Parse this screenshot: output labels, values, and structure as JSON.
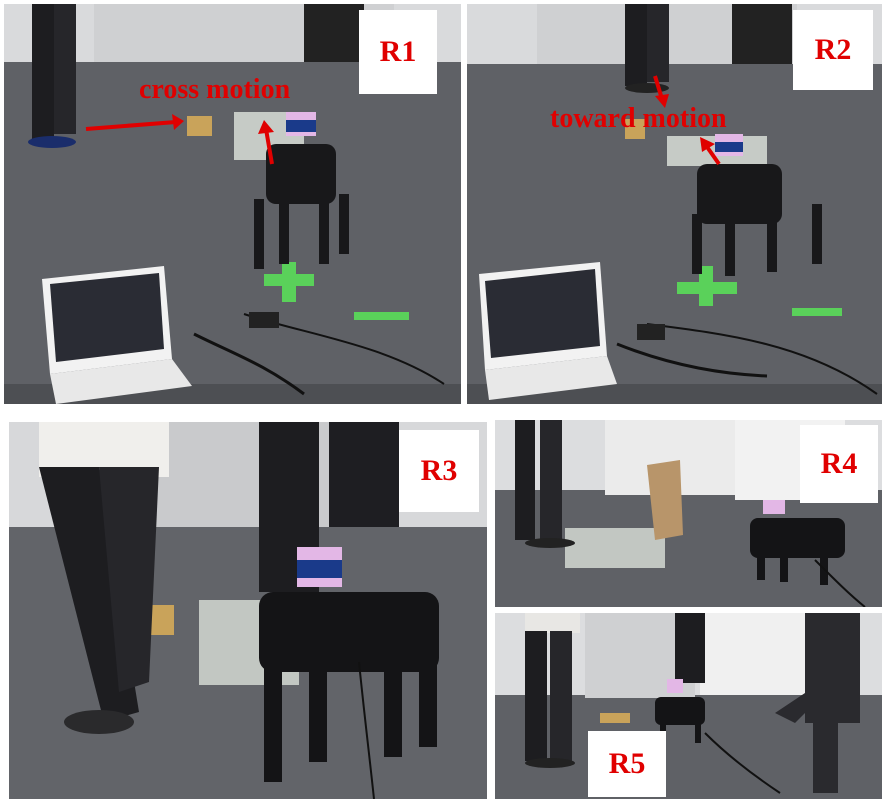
{
  "panels": {
    "r1": {
      "label": "R1",
      "annotation": "cross motion"
    },
    "r2": {
      "label": "R2",
      "annotation": "toward motion"
    },
    "r3": {
      "label": "R3"
    },
    "r4": {
      "label": "R4"
    },
    "r5": {
      "label": "R5"
    }
  },
  "colors": {
    "label_text": "#e00000",
    "label_box": "#ffffff",
    "arrow": "#e00000",
    "floor": "#5b5d62",
    "floor_tape": "#5ad15a"
  }
}
